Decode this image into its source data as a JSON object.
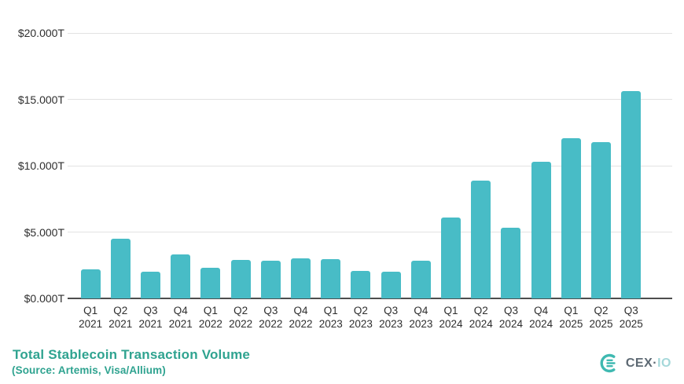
{
  "chart_data": {
    "type": "bar",
    "title": "Total Stablecoin Transaction Volume",
    "source": "(Source: Artemis, Visa/Allium)",
    "categories": [
      "Q1 2021",
      "Q2 2021",
      "Q3 2021",
      "Q4 2021",
      "Q1 2022",
      "Q2 2022",
      "Q3 2022",
      "Q4 2022",
      "Q1 2023",
      "Q2 2023",
      "Q3 2023",
      "Q4 2023",
      "Q1 2024",
      "Q2 2024",
      "Q3 2024",
      "Q4 2024",
      "Q1 2025",
      "Q2 2025",
      "Q3 2025"
    ],
    "values": [
      2.2,
      4.5,
      2.0,
      3.3,
      2.3,
      2.9,
      2.85,
      3.0,
      2.95,
      2.1,
      2.0,
      2.85,
      6.1,
      8.9,
      5.35,
      10.3,
      12.1,
      11.75,
      15.6
    ],
    "unit": "T",
    "xlabel": "",
    "ylabel": "",
    "ylim": [
      0,
      20
    ],
    "yticks": [
      {
        "value": 0,
        "label": "$0.000T"
      },
      {
        "value": 5,
        "label": "$5.000T"
      },
      {
        "value": 10,
        "label": "$10.000T"
      },
      {
        "value": 15,
        "label": "$15.000T"
      },
      {
        "value": 20,
        "label": "$20.000T"
      }
    ],
    "grid": true,
    "legend": "none",
    "bar_color": "#48bcc6"
  },
  "colors": {
    "title_teal": "#2fa390",
    "gridline": "#e2e2e2",
    "axis_line": "#4d4d4d",
    "axis_text": "#2f2f2f"
  },
  "logo": {
    "brand": "CEX",
    "separator": "·",
    "suffix": "IO",
    "icon": "cexio-logo-icon",
    "icon_color": "#3fb9b1",
    "brand_color": "#5d6973",
    "suffix_color": "#a5d8da"
  }
}
